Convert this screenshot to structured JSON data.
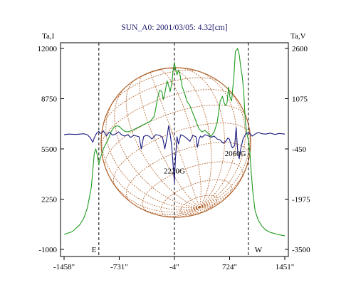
{
  "chart_data": {
    "type": "line",
    "title": "SUN_A0: 2001/03/05: 4.32[cm]",
    "left_axis": {
      "label": "Ta,I",
      "range": [
        -1000,
        12000
      ],
      "ticks": [
        12000,
        8750,
        5500,
        2250,
        -1000
      ],
      "tick_labels": [
        "12000",
        "8750",
        "5500",
        "2250",
        "-1000"
      ]
    },
    "right_axis": {
      "label": "Ta,V",
      "range": [
        -3500,
        2600
      ],
      "ticks": [
        2600,
        1075,
        -450,
        -1975,
        -3500
      ],
      "tick_labels": [
        "2600",
        "1075",
        "-450",
        "-1975",
        "-3500"
      ]
    },
    "x_axis": {
      "range": [
        -1458,
        1451
      ],
      "ticks": [
        -1458,
        -731,
        -4,
        724,
        1451
      ],
      "tick_labels": [
        "-1458\"",
        "-731\"",
        "-4\"",
        "724\"",
        "1451\""
      ]
    },
    "limb_markers": [
      {
        "x": -1000,
        "label": "E"
      },
      {
        "x": -4,
        "label": ""
      },
      {
        "x": 970,
        "label": "W"
      }
    ],
    "annotations": [
      {
        "text": "2220G",
        "x": -4,
        "y_left": 3900
      },
      {
        "text": "2060G",
        "x": 800,
        "y_left": 5050
      }
    ],
    "series": [
      {
        "axis": "left",
        "color": "#1f9a1f",
        "x": [
          -1458,
          -1350,
          -1250,
          -1200,
          -1150,
          -1100,
          -1080,
          -1060,
          -1040,
          -1020,
          -1000,
          -980,
          -960,
          -940,
          -920,
          -900,
          -880,
          -860,
          -840,
          -800,
          -760,
          -730,
          -700,
          -660,
          -620,
          -560,
          -500,
          -440,
          -380,
          -320,
          -270,
          -250,
          -230,
          -200,
          -170,
          -150,
          -130,
          -100,
          -80,
          -60,
          -40,
          -20,
          -4,
          10,
          30,
          50,
          70,
          100,
          130,
          160,
          200,
          240,
          280,
          320,
          360,
          400,
          440,
          480,
          520,
          560,
          600,
          630,
          650,
          670,
          690,
          710,
          730,
          750,
          780,
          800,
          830,
          850,
          870,
          890,
          910,
          930,
          950,
          970,
          990,
          1010,
          1030,
          1060,
          1100,
          1150,
          1200,
          1260,
          1320,
          1380,
          1451
        ],
        "y": [
          -30,
          150,
          600,
          1000,
          1700,
          3000,
          4100,
          5200,
          5500,
          5100,
          4500,
          4900,
          5200,
          5500,
          5700,
          5900,
          6100,
          6300,
          6600,
          6900,
          7000,
          6950,
          6800,
          6650,
          6600,
          6700,
          6850,
          7000,
          7150,
          7300,
          7600,
          8100,
          8700,
          9300,
          9200,
          8700,
          9100,
          9900,
          9600,
          9200,
          9700,
          10600,
          11100,
          10700,
          10300,
          10600,
          10300,
          9500,
          9100,
          8600,
          8300,
          7800,
          7300,
          6800,
          6600,
          6700,
          6500,
          6300,
          6600,
          7200,
          8600,
          8900,
          8500,
          8300,
          8500,
          9500,
          8800,
          8600,
          10200,
          11800,
          12000,
          11600,
          10800,
          10200,
          9200,
          7300,
          6500,
          6100,
          5300,
          3900,
          2700,
          1500,
          900,
          500,
          250,
          100,
          20,
          -60,
          -120
        ]
      },
      {
        "axis": "right",
        "color": "#1a1a80",
        "x": [
          -1458,
          -1400,
          -1300,
          -1200,
          -1150,
          -1110,
          -1080,
          -1060,
          -1040,
          -1020,
          -1000,
          -980,
          -960,
          -940,
          -900,
          -860,
          -820,
          -780,
          -740,
          -700,
          -660,
          -620,
          -580,
          -540,
          -500,
          -470,
          -440,
          -410,
          -380,
          -340,
          -300,
          -250,
          -200,
          -160,
          -130,
          -100,
          -80,
          -60,
          -40,
          -20,
          -4,
          10,
          30,
          50,
          80,
          120,
          160,
          200,
          240,
          280,
          300,
          320,
          340,
          360,
          400,
          440,
          480,
          520,
          560,
          600,
          640,
          680,
          700,
          720,
          740,
          760,
          790,
          810,
          830,
          850,
          870,
          900,
          940,
          980,
          1020,
          1060,
          1100,
          1150,
          1200,
          1260,
          1320,
          1380,
          1451
        ],
        "y": [
          -20,
          0,
          -10,
          10,
          -20,
          -120,
          -250,
          -120,
          -20,
          50,
          80,
          20,
          40,
          100,
          -50,
          60,
          -30,
          0,
          70,
          -20,
          -60,
          -20,
          -100,
          -40,
          -60,
          -80,
          -450,
          -80,
          -40,
          -60,
          -150,
          -20,
          -40,
          -100,
          -450,
          -80,
          250,
          0,
          -350,
          -950,
          -1480,
          -750,
          -80,
          -300,
          -20,
          -60,
          -130,
          -220,
          -40,
          -80,
          -400,
          -150,
          -60,
          -100,
          -20,
          -50,
          -100,
          -60,
          -150,
          -180,
          -280,
          -200,
          -120,
          -150,
          -300,
          -420,
          -350,
          200,
          -500,
          -750,
          -450,
          -150,
          20,
          40,
          -60,
          0,
          50,
          10,
          0,
          30,
          -10,
          20,
          0
        ]
      }
    ],
    "solar_disk": {
      "grid": "latitude-longitude",
      "color": "#b0612a"
    },
    "grid": false,
    "legend": "none"
  }
}
